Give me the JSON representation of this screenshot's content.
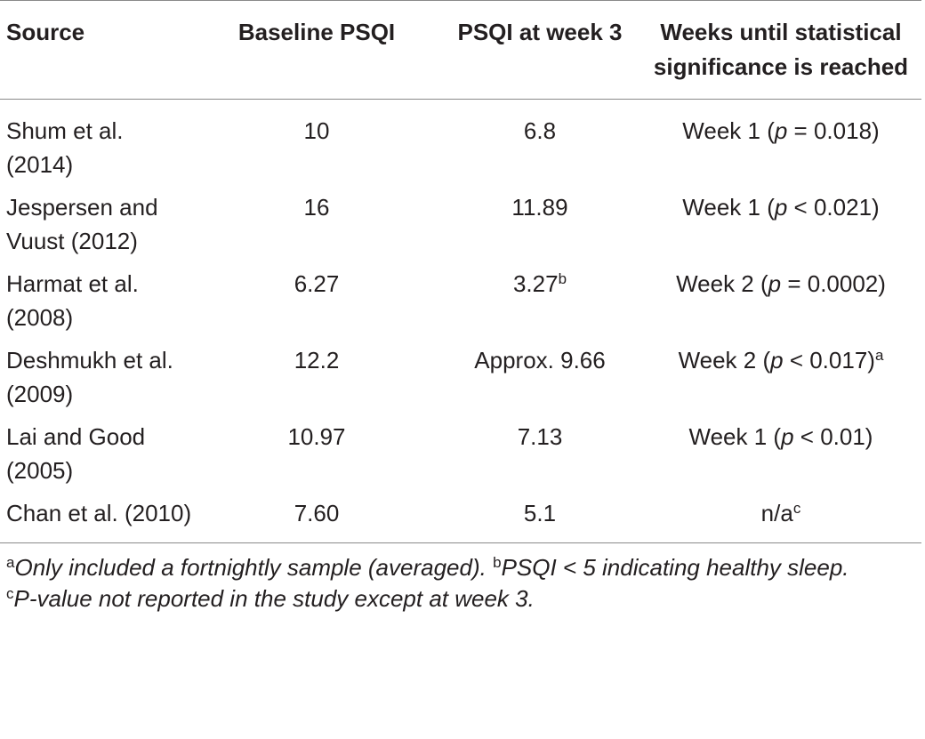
{
  "table": {
    "headers": {
      "source": "Source",
      "baseline": "Baseline PSQI",
      "week3": "PSQI at week 3",
      "weeks_until": "Weeks until statistical significance is reached"
    },
    "rows": [
      {
        "source": "Shum et al. (2014)",
        "baseline": "10",
        "week3": "6.8",
        "week3_sup": "",
        "sig_week": "Week 1 (",
        "sig_p": "p",
        "sig_rest": " = 0.018)",
        "sig_sup": ""
      },
      {
        "source": "Jespersen and Vuust (2012)",
        "baseline": "16",
        "week3": "11.89",
        "week3_sup": "",
        "sig_week": "Week 1 (",
        "sig_p": "p",
        "sig_rest": " < 0.021)",
        "sig_sup": ""
      },
      {
        "source": "Harmat et al. (2008)",
        "baseline": "6.27",
        "week3": "3.27",
        "week3_sup": "b",
        "sig_week": "Week 2 (",
        "sig_p": "p",
        "sig_rest": " = 0.0002)",
        "sig_sup": ""
      },
      {
        "source": "Deshmukh et al. (2009)",
        "baseline": "12.2",
        "week3": "Approx. 9.66",
        "week3_sup": "",
        "sig_week": "Week 2 (",
        "sig_p": "p",
        "sig_rest": " < 0.017)",
        "sig_sup": "a"
      },
      {
        "source": "Lai and Good (2005)",
        "baseline": "10.97",
        "week3": "7.13",
        "week3_sup": "",
        "sig_week": "Week 1 (",
        "sig_p": "p",
        "sig_rest": " < 0.01)",
        "sig_sup": ""
      },
      {
        "source": "Chan et al. (2010)",
        "baseline": "7.60",
        "week3": "5.1",
        "week3_sup": "",
        "sig_week": "n/a",
        "sig_p": "",
        "sig_rest": "",
        "sig_sup": "c"
      }
    ]
  },
  "footnotes": {
    "a_mark": "a",
    "a_text": "Only included a fortnightly sample (averaged).",
    "b_mark": "b",
    "b_text": "PSQI < 5 indicating healthy sleep.",
    "c_mark": "c",
    "c_text": "P-value not reported in the study except at week 3."
  }
}
